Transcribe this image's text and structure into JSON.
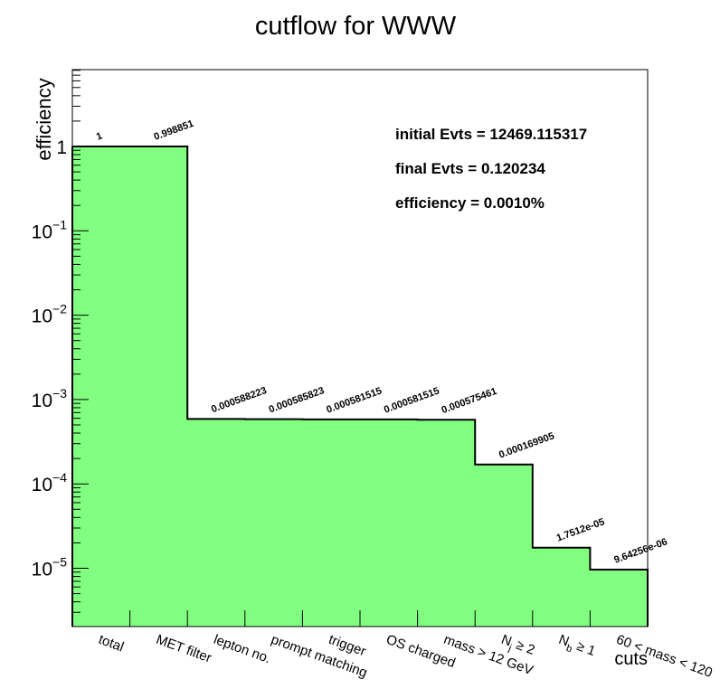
{
  "chart_data": {
    "type": "bar",
    "style": "histogram-step",
    "title": "cutflow for WWW",
    "xlabel": "cuts",
    "ylabel": "efficiency",
    "yscale": "log",
    "ylim": [
      2e-06,
      9
    ],
    "fill_color": "#80ff80",
    "line_color": "#000000",
    "categories": [
      "total",
      "MET filter",
      "lepton no.",
      "prompt matching",
      "trigger",
      "OS charged",
      "mass > 12 GeV",
      "N_j ≥ 2",
      "N_b ≥ 1",
      "60 < mass < 120"
    ],
    "bins": [
      {
        "category": "total",
        "value": 1,
        "label": "1",
        "shown": false
      },
      {
        "category": "MET filter",
        "value": 1,
        "label": "1",
        "shown": true
      },
      {
        "category": "lepton no.",
        "value": 0.998851,
        "label": "0.998851",
        "shown": true
      },
      {
        "category": "prompt matching",
        "value": 0.000588223,
        "label": "0.000588223",
        "shown": true
      },
      {
        "category": "trigger",
        "value": 0.000585823,
        "label": "0.000585823",
        "shown": true
      },
      {
        "category": "OS charged",
        "value": 0.000581515,
        "label": "0.000581515",
        "shown": true
      },
      {
        "category": "mass > 12 GeV",
        "value": 0.000581515,
        "label": "0.000581515",
        "shown": true
      },
      {
        "category": "N_j ≥ 2",
        "value": 0.000575461,
        "label": "0.000575461",
        "shown": true
      },
      {
        "category": "N_b ≥ 1",
        "value": 0.000169905,
        "label": "0.000169905",
        "shown": true
      },
      {
        "category": "60 < mass < 120",
        "value": 1.7512e-05,
        "label": "1.7512e-05",
        "shown": true
      },
      {
        "category": "",
        "value": 9.64256e-06,
        "label": "9.64256e-06",
        "shown": true
      }
    ],
    "yticks": [
      {
        "base": "1",
        "exp": "",
        "value": 1
      },
      {
        "base": "10",
        "exp": "−1",
        "value": 0.1
      },
      {
        "base": "10",
        "exp": "−2",
        "value": 0.01
      },
      {
        "base": "10",
        "exp": "−3",
        "value": 0.001
      },
      {
        "base": "10",
        "exp": "−4",
        "value": 0.0001
      },
      {
        "base": "10",
        "exp": "−5",
        "value": 1e-05
      }
    ],
    "stats": [
      "initial Evts = 12469.115317",
      "final Evts = 0.120234",
      "efficiency = 0.0010%"
    ],
    "cat_labels": [
      {
        "text": "total",
        "sub": "",
        "rest": ""
      },
      {
        "text": "MET filter",
        "sub": "",
        "rest": ""
      },
      {
        "text": "lepton no.",
        "sub": "",
        "rest": ""
      },
      {
        "text": "prompt matching",
        "sub": "",
        "rest": ""
      },
      {
        "text": "trigger",
        "sub": "",
        "rest": ""
      },
      {
        "text": "OS charged",
        "sub": "",
        "rest": ""
      },
      {
        "text": "mass > 12 GeV",
        "sub": "",
        "rest": ""
      },
      {
        "text": "N",
        "sub": "j",
        "rest": " ≥ 2"
      },
      {
        "text": "N",
        "sub": "b",
        "rest": " ≥ 1"
      },
      {
        "text": "60 < mass < 120",
        "sub": "",
        "rest": ""
      }
    ]
  }
}
